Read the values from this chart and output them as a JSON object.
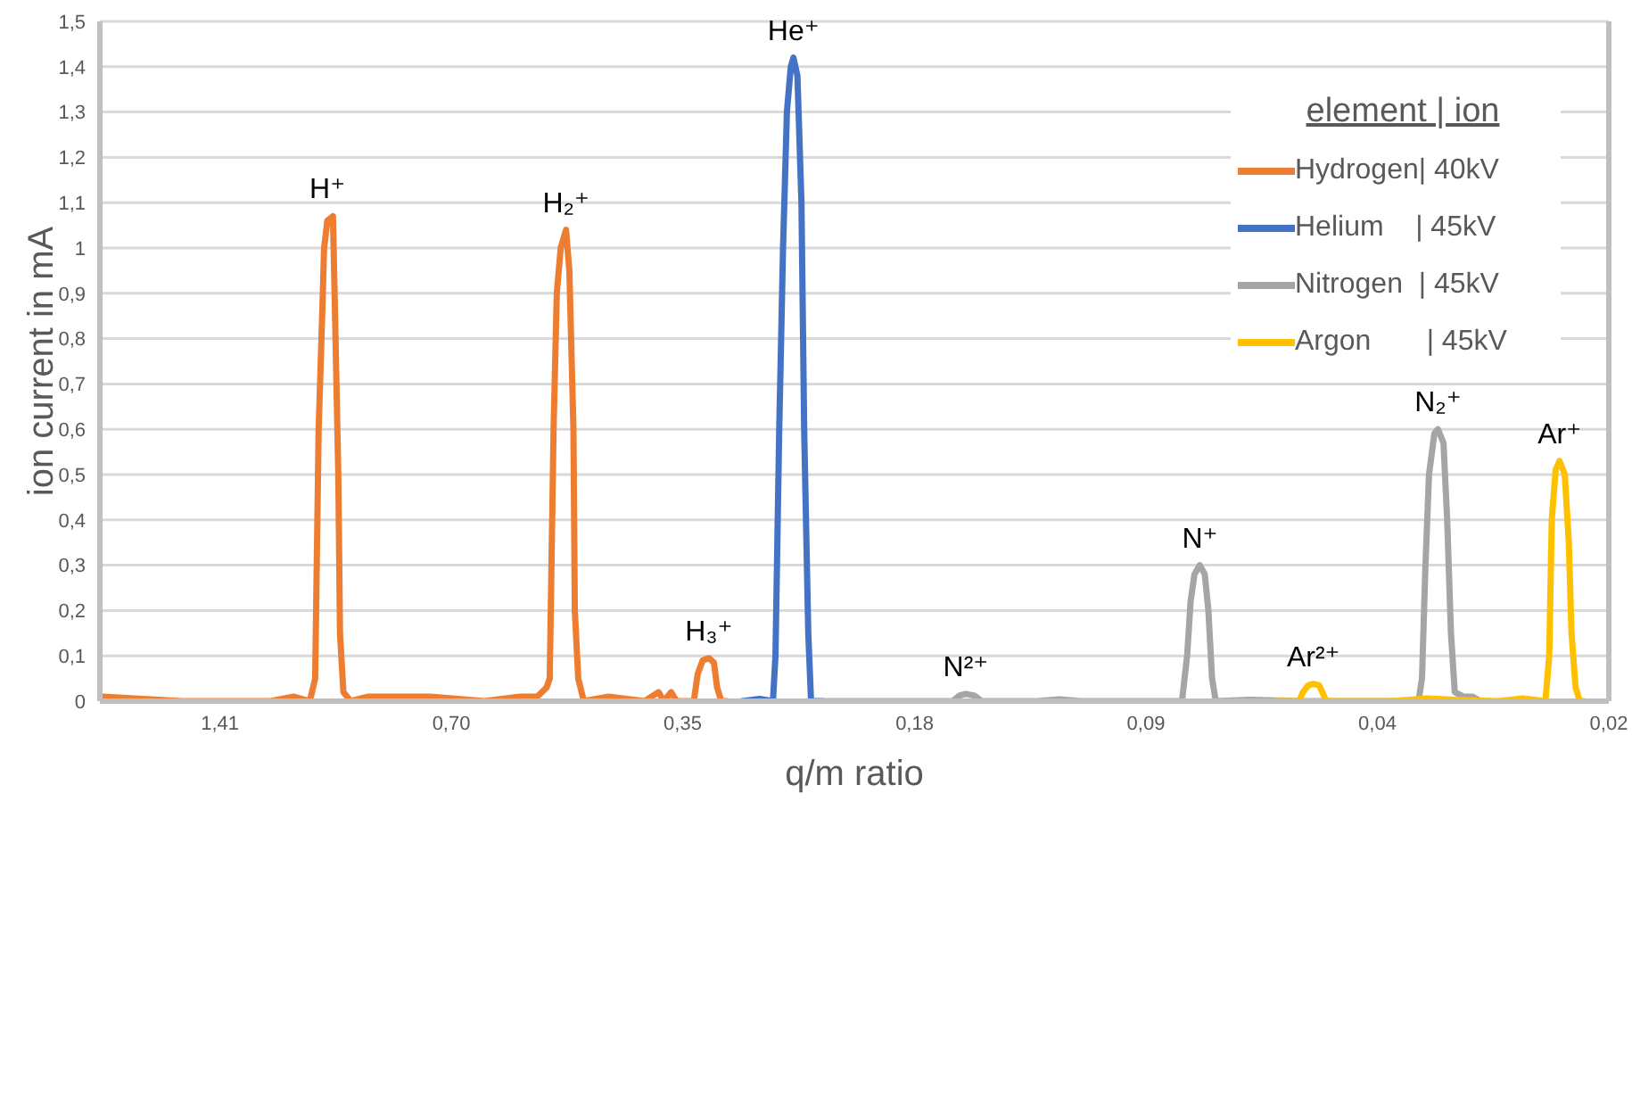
{
  "chart_data": {
    "type": "line",
    "xlabel": "q/m ratio",
    "ylabel": "ion current in mA",
    "legend_title": "element | ion",
    "legend": "top right",
    "grid": "y",
    "marker": "none",
    "line_style": "solid",
    "log": "x",
    "xlim": [
      2.02,
      0.022
    ],
    "xticks": [
      {
        "value": 1.41,
        "label": "1,41"
      },
      {
        "value": 0.705,
        "label": "0,70"
      },
      {
        "value": 0.3525,
        "label": "0,35"
      },
      {
        "value": 0.176,
        "label": "0,18"
      },
      {
        "value": 0.088,
        "label": "0,09"
      },
      {
        "value": 0.044,
        "label": "0,04"
      },
      {
        "value": 0.022,
        "label": "0,02"
      }
    ],
    "ylim": [
      0,
      1.5
    ],
    "yticks": [
      0,
      {
        "value": 0.1,
        "label": "0,1"
      },
      {
        "value": 0.2,
        "label": "0,2"
      },
      {
        "value": 0.3,
        "label": "0,3"
      },
      {
        "value": 0.4,
        "label": "0,4"
      },
      {
        "value": 0.5,
        "label": "0,5"
      },
      {
        "value": 0.6,
        "label": "0,6"
      },
      {
        "value": 0.7,
        "label": "0,7"
      },
      {
        "value": 0.8,
        "label": "0,8"
      },
      {
        "value": 0.9,
        "label": "0,9"
      },
      1,
      {
        "value": 1.1,
        "label": "1,1"
      },
      {
        "value": 1.2,
        "label": "1,2"
      },
      {
        "value": 1.3,
        "label": "1,3"
      },
      {
        "value": 1.4,
        "label": "1,4"
      },
      {
        "value": 1.5,
        "label": "1,5"
      }
    ],
    "series": [
      {
        "name": "Hydrogen| 40kV",
        "color": "#ed7d31",
        "x": [
          2.0,
          1.582,
          1.212,
          1.131,
          1.077,
          1.06,
          1.049,
          1.038,
          1.032,
          1.022,
          1.005,
          1.0,
          0.989,
          0.984,
          0.974,
          0.953,
          0.904,
          0.75,
          0.639,
          0.574,
          0.545,
          0.53,
          0.525,
          0.519,
          0.514,
          0.508,
          0.5,
          0.495,
          0.489,
          0.487,
          0.482,
          0.474,
          0.44,
          0.395,
          0.379,
          0.373,
          0.365,
          0.359,
          0.341,
          0.337,
          0.332,
          0.326,
          0.321,
          0.318,
          0.314,
          0.309
        ],
        "values": [
          0.01,
          0,
          0,
          0.01,
          0,
          0.05,
          0.6,
          0.85,
          1.0,
          1.06,
          1.07,
          0.9,
          0.5,
          0.15,
          0.02,
          0,
          0.01,
          0.01,
          0,
          0.01,
          0.01,
          0.03,
          0.05,
          0.6,
          0.9,
          1.0,
          1.04,
          0.95,
          0.6,
          0.2,
          0.05,
          0,
          0.01,
          0,
          0.02,
          0,
          0.02,
          0,
          0,
          0.06,
          0.09,
          0.095,
          0.085,
          0.03,
          0,
          0
        ]
      },
      {
        "name": "Helium    | 45kV",
        "color": "#4472c4",
        "x": [
          0.295,
          0.28,
          0.269,
          0.267,
          0.264,
          0.261,
          0.258,
          0.255,
          0.253,
          0.25,
          0.247,
          0.245,
          0.242,
          0.24,
          0.232
        ],
        "values": [
          0,
          0.005,
          0,
          0.1,
          0.6,
          1.0,
          1.3,
          1.4,
          1.42,
          1.38,
          1.1,
          0.6,
          0.15,
          0,
          0
        ]
      },
      {
        "name": "Nitrogen  | 45kV",
        "color": "#a5a5a5",
        "x": [
          0.235,
          0.187,
          0.157,
          0.154,
          0.151,
          0.147,
          0.144,
          0.122,
          0.114,
          0.107,
          0.0889,
          0.079,
          0.0778,
          0.077,
          0.0761,
          0.0749,
          0.0738,
          0.073,
          0.0722,
          0.0714,
          0.0645,
          0.055,
          0.0421,
          0.0389,
          0.0385,
          0.0381,
          0.0377,
          0.0371,
          0.0367,
          0.0361,
          0.0357,
          0.0353,
          0.0349,
          0.034,
          0.0331,
          0.0323
        ],
        "values": [
          0,
          0,
          0,
          0.012,
          0.016,
          0.012,
          0,
          0,
          0.004,
          0,
          0,
          0,
          0.1,
          0.22,
          0.28,
          0.3,
          0.28,
          0.2,
          0.05,
          0,
          0.003,
          0,
          0,
          0,
          0.05,
          0.3,
          0.5,
          0.59,
          0.6,
          0.57,
          0.4,
          0.15,
          0.02,
          0.01,
          0.01,
          0
        ]
      },
      {
        "name": "Argon       | 45kV",
        "color": "#ffc000",
        "x": [
          0.0596,
          0.0556,
          0.055,
          0.0541,
          0.0533,
          0.0524,
          0.0519,
          0.0513,
          0.0421,
          0.0379,
          0.0349,
          0.0306,
          0.0285,
          0.0272,
          0.0266,
          0.0263,
          0.0261,
          0.0258,
          0.0255,
          0.0251,
          0.0248,
          0.0246,
          0.0243,
          0.024,
          0.0237
        ],
        "values": [
          0,
          0,
          0.02,
          0.035,
          0.038,
          0.035,
          0.02,
          0,
          0,
          0.006,
          0.003,
          0,
          0.006,
          0.002,
          0,
          0.1,
          0.4,
          0.51,
          0.53,
          0.5,
          0.35,
          0.15,
          0.03,
          0,
          0
        ]
      }
    ],
    "annotations": [
      {
        "text": "H⁺",
        "x": 1.022,
        "y": 1.07
      },
      {
        "text": "H₂⁺",
        "x": 0.5,
        "y": 1.04
      },
      {
        "text": "H₃⁺",
        "x": 0.326,
        "y": 0.095
      },
      {
        "text": "He⁺",
        "x": 0.253,
        "y": 1.42
      },
      {
        "text": "N²⁺",
        "x": 0.151,
        "y": 0.016
      },
      {
        "text": "N⁺",
        "x": 0.0749,
        "y": 0.3
      },
      {
        "text": "Ar²⁺",
        "x": 0.0533,
        "y": 0.038
      },
      {
        "text": "N₂⁺",
        "x": 0.0367,
        "y": 0.6
      },
      {
        "text": "Ar⁺",
        "x": 0.0255,
        "y": 0.53
      }
    ]
  }
}
